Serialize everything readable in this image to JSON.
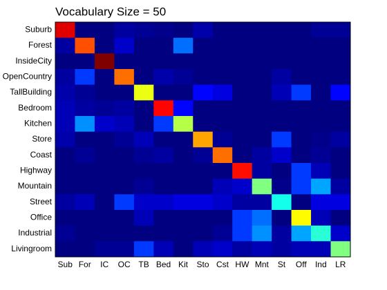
{
  "chart_data": {
    "type": "heatmap",
    "title": "Vocabulary Size = 50",
    "colormap": "jet",
    "x_categories": [
      "Sub",
      "For",
      "IC",
      "OC",
      "TB",
      "Bed",
      "Kit",
      "Sto",
      "Cst",
      "HW",
      "Mnt",
      "St",
      "Off",
      "Ind",
      "LR"
    ],
    "y_categories": [
      "Suburb",
      "Forest",
      "InsideCity",
      "OpenCountry",
      "TallBuilding",
      "Bedroom",
      "Kitchen",
      "Store",
      "Coast",
      "Highway",
      "Mountain",
      "Street",
      "Office",
      "Industrial",
      "Livingroom"
    ],
    "z": [
      [
        0.88,
        0.03,
        0.03,
        0.06,
        0.05,
        0.04,
        0.03,
        0.07,
        0.03,
        0.03,
        0.03,
        0.03,
        0.03,
        0.05,
        0.05
      ],
      [
        0.06,
        0.78,
        0.03,
        0.1,
        0.03,
        0.03,
        0.25,
        0.03,
        0.03,
        0.03,
        0.03,
        0.03,
        0.03,
        0.03,
        0.03
      ],
      [
        0.03,
        0.03,
        0.97,
        0.03,
        0.03,
        0.03,
        0.03,
        0.03,
        0.03,
        0.03,
        0.03,
        0.03,
        0.03,
        0.03,
        0.03
      ],
      [
        0.06,
        0.2,
        0.03,
        0.75,
        0.03,
        0.07,
        0.05,
        0.03,
        0.03,
        0.03,
        0.03,
        0.06,
        0.03,
        0.03,
        0.03
      ],
      [
        0.07,
        0.05,
        0.03,
        0.03,
        0.6,
        0.03,
        0.03,
        0.15,
        0.12,
        0.03,
        0.03,
        0.08,
        0.2,
        0.03,
        0.15
      ],
      [
        0.08,
        0.06,
        0.05,
        0.06,
        0.03,
        0.85,
        0.15,
        0.03,
        0.03,
        0.03,
        0.03,
        0.03,
        0.03,
        0.03,
        0.03
      ],
      [
        0.08,
        0.28,
        0.1,
        0.08,
        0.03,
        0.2,
        0.55,
        0.03,
        0.03,
        0.03,
        0.03,
        0.03,
        0.03,
        0.03,
        0.03
      ],
      [
        0.07,
        0.03,
        0.03,
        0.05,
        0.08,
        0.03,
        0.03,
        0.7,
        0.05,
        0.03,
        0.03,
        0.2,
        0.03,
        0.04,
        0.06
      ],
      [
        0.03,
        0.05,
        0.03,
        0.03,
        0.05,
        0.06,
        0.03,
        0.05,
        0.75,
        0.03,
        0.06,
        0.1,
        0.03,
        0.05,
        0.03
      ],
      [
        0.03,
        0.03,
        0.03,
        0.03,
        0.03,
        0.03,
        0.03,
        0.03,
        0.03,
        0.84,
        0.06,
        0.03,
        0.2,
        0.08,
        0.03
      ],
      [
        0.03,
        0.03,
        0.03,
        0.03,
        0.05,
        0.03,
        0.03,
        0.03,
        0.08,
        0.1,
        0.5,
        0.04,
        0.2,
        0.3,
        0.06
      ],
      [
        0.06,
        0.08,
        0.03,
        0.2,
        0.1,
        0.1,
        0.12,
        0.12,
        0.1,
        0.06,
        0.06,
        0.4,
        0.03,
        0.12,
        0.12
      ],
      [
        0.03,
        0.03,
        0.03,
        0.03,
        0.08,
        0.03,
        0.03,
        0.03,
        0.03,
        0.2,
        0.25,
        0.03,
        0.62,
        0.08,
        0.03
      ],
      [
        0.05,
        0.03,
        0.03,
        0.03,
        0.03,
        0.03,
        0.03,
        0.03,
        0.05,
        0.2,
        0.28,
        0.06,
        0.3,
        0.42,
        0.1
      ],
      [
        0.03,
        0.03,
        0.05,
        0.05,
        0.2,
        0.08,
        0.03,
        0.08,
        0.1,
        0.06,
        0.08,
        0.06,
        0.08,
        0.08,
        0.5
      ]
    ]
  }
}
